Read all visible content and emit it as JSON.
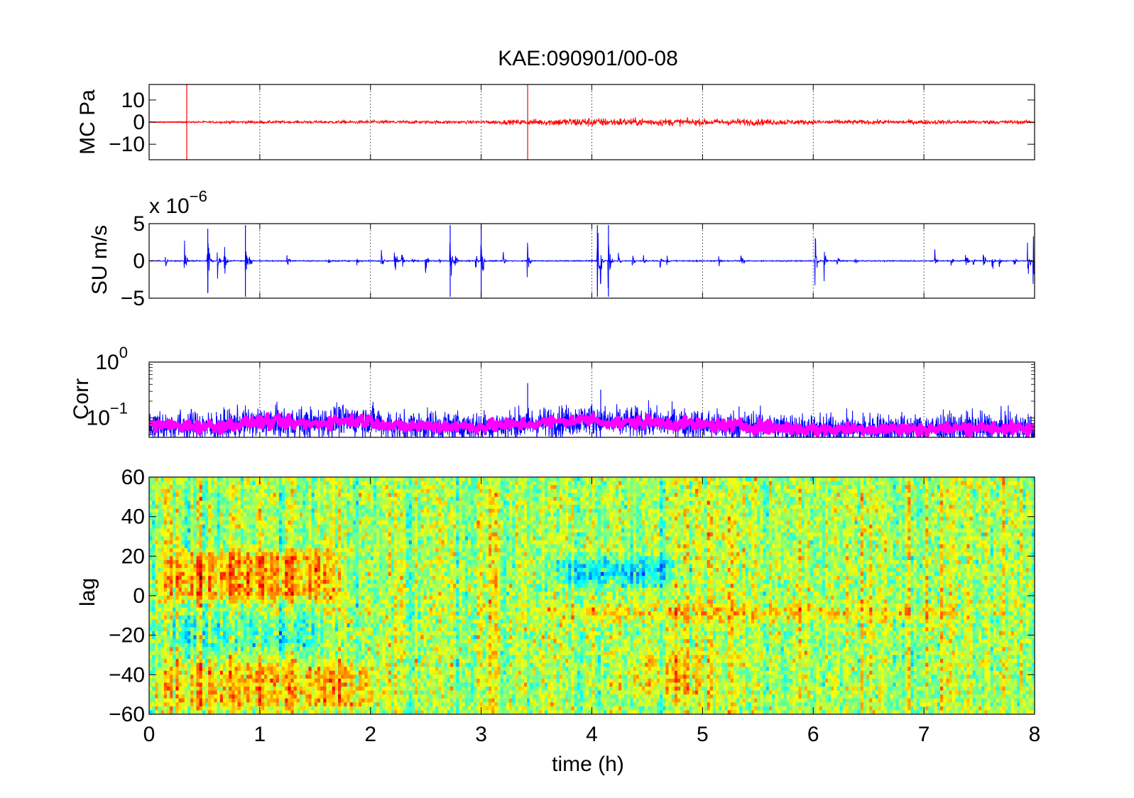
{
  "title": "KAE:090901/00-08",
  "xlabel": "time (h)",
  "colors": {
    "mc": "#ff0000",
    "su": "#0000ff",
    "corr": "#0000ff",
    "corr_mean": "#ff00ff"
  },
  "chart_data": [
    {
      "type": "line",
      "name": "mc",
      "ylabel": "MC Pa",
      "xlim": [
        0,
        8
      ],
      "ylim": [
        -17,
        17
      ],
      "yticks": [
        10,
        0,
        -10
      ],
      "ytick_labels": [
        "10",
        "0",
        "−10"
      ],
      "grid": true,
      "envelope": [
        [
          0,
          0.2
        ],
        [
          0.33,
          0.3
        ],
        [
          0.6,
          0.5
        ],
        [
          1.0,
          0.6
        ],
        [
          1.5,
          0.6
        ],
        [
          2.0,
          0.8
        ],
        [
          2.5,
          0.7
        ],
        [
          3.0,
          0.7
        ],
        [
          3.4,
          1.2
        ],
        [
          3.9,
          2.0
        ],
        [
          4.2,
          1.8
        ],
        [
          4.8,
          1.6
        ],
        [
          5.0,
          1.4
        ],
        [
          5.4,
          1.5
        ],
        [
          6.0,
          1.0
        ],
        [
          7.0,
          1.0
        ],
        [
          8.0,
          0.8
        ]
      ],
      "spikes": [
        [
          0.34,
          17
        ],
        [
          3.42,
          17
        ]
      ]
    },
    {
      "type": "line",
      "name": "su",
      "ylabel": "SU m/s",
      "scale_label": "x 10",
      "scale_exponent": "−6",
      "xlim": [
        0,
        8
      ],
      "ylim": [
        -5,
        5
      ],
      "yticks": [
        5,
        0,
        -5
      ],
      "ytick_labels": [
        "5",
        "0",
        "−5"
      ],
      "grid": true,
      "bursts": [
        [
          0.15,
          1.0
        ],
        [
          0.32,
          3.0
        ],
        [
          0.53,
          4.5
        ],
        [
          0.62,
          2.0
        ],
        [
          0.68,
          3.0
        ],
        [
          0.87,
          5.0
        ],
        [
          0.91,
          1.5
        ],
        [
          1.25,
          1.2
        ],
        [
          1.62,
          0.8
        ],
        [
          1.88,
          0.6
        ],
        [
          2.1,
          1.5
        ],
        [
          2.22,
          2.5
        ],
        [
          2.28,
          1.5
        ],
        [
          2.38,
          1.0
        ],
        [
          2.5,
          1.8
        ],
        [
          2.62,
          0.6
        ],
        [
          2.72,
          5.0
        ],
        [
          2.77,
          1.0
        ],
        [
          2.95,
          2.0
        ],
        [
          3.0,
          5.0
        ],
        [
          3.2,
          1.5
        ],
        [
          3.42,
          3.0
        ],
        [
          4.05,
          5.0
        ],
        [
          4.08,
          3.0
        ],
        [
          4.15,
          5.0
        ],
        [
          4.24,
          1.5
        ],
        [
          4.37,
          1.2
        ],
        [
          4.47,
          1.0
        ],
        [
          4.62,
          1.0
        ],
        [
          4.68,
          0.8
        ],
        [
          5.15,
          0.8
        ],
        [
          5.35,
          1.8
        ],
        [
          6.02,
          3.5
        ],
        [
          6.1,
          2.0
        ],
        [
          6.22,
          1.0
        ],
        [
          6.38,
          0.8
        ],
        [
          7.1,
          1.5
        ],
        [
          7.25,
          0.8
        ],
        [
          7.38,
          1.5
        ],
        [
          7.45,
          0.8
        ],
        [
          7.54,
          1.5
        ],
        [
          7.62,
          1.0
        ],
        [
          7.68,
          0.8
        ],
        [
          7.82,
          1.0
        ],
        [
          7.94,
          3.0
        ],
        [
          7.99,
          3.5
        ]
      ]
    },
    {
      "type": "line",
      "name": "corr",
      "ylabel": "Corr",
      "yscale": "log",
      "xlim": [
        0,
        8
      ],
      "ylim": [
        0.045,
        1.0
      ],
      "ytick_labels": [
        {
          "base": "10",
          "exp": "0",
          "value": 1.0
        },
        {
          "base": "10",
          "exp": "−1",
          "value": 0.1
        }
      ],
      "grid": true,
      "mean_level": [
        [
          0,
          0.075
        ],
        [
          0.3,
          0.072
        ],
        [
          0.6,
          0.07
        ],
        [
          1.0,
          0.085
        ],
        [
          1.5,
          0.078
        ],
        [
          1.7,
          0.09
        ],
        [
          2.0,
          0.09
        ],
        [
          2.2,
          0.07
        ],
        [
          2.5,
          0.072
        ],
        [
          3.0,
          0.07
        ],
        [
          3.5,
          0.08
        ],
        [
          4.0,
          0.095
        ],
        [
          4.2,
          0.08
        ],
        [
          4.5,
          0.085
        ],
        [
          5.0,
          0.075
        ],
        [
          5.5,
          0.07
        ],
        [
          6.0,
          0.062
        ],
        [
          6.5,
          0.065
        ],
        [
          7.0,
          0.062
        ],
        [
          7.5,
          0.068
        ],
        [
          8.0,
          0.062
        ]
      ]
    },
    {
      "type": "heatmap",
      "name": "lag",
      "ylabel": "lag",
      "xlim": [
        0,
        8
      ],
      "ylim": [
        -60,
        60
      ],
      "yticks": [
        60,
        40,
        20,
        0,
        -20,
        -40,
        -60
      ],
      "ytick_labels": [
        "60",
        "40",
        "20",
        "0",
        "−20",
        "−40",
        "−60"
      ],
      "xticks": [
        0,
        1,
        2,
        3,
        4,
        5,
        6,
        7,
        8
      ],
      "xtick_labels": [
        "0",
        "1",
        "2",
        "3",
        "4",
        "5",
        "6",
        "7",
        "8"
      ],
      "colormap": "jet",
      "features": [
        {
          "t0": 0,
          "t1": 1.8,
          "lag0": -5,
          "lag1": 25,
          "level": 0.72
        },
        {
          "t0": 0,
          "t1": 1.8,
          "lag0": -30,
          "lag1": -8,
          "level": 0.45
        },
        {
          "t0": 0,
          "t1": 2.2,
          "lag0": -60,
          "lag1": -32,
          "level": 0.68
        },
        {
          "t0": 3.5,
          "t1": 4.9,
          "lag0": 2,
          "lag1": 22,
          "level": 0.38
        },
        {
          "t0": 3.5,
          "t1": 7.5,
          "lag0": -15,
          "lag1": -2,
          "level": 0.66
        },
        {
          "t0": 4.2,
          "t1": 5.2,
          "lag0": -55,
          "lag1": -25,
          "level": 0.64
        }
      ]
    }
  ]
}
